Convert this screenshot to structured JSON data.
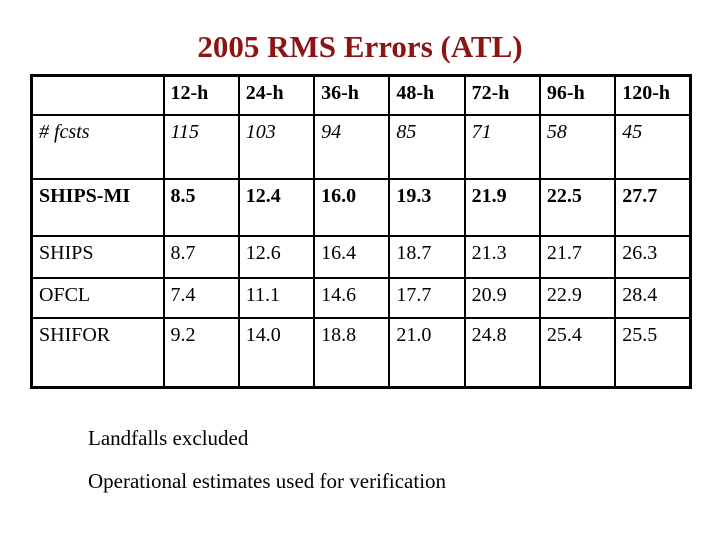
{
  "slide": {
    "title": "2005 RMS Errors (ATL)",
    "title_color": "#8c1414",
    "table": {
      "columns": [
        "",
        "12-h",
        "24-h",
        "36-h",
        "48-h",
        "72-h",
        "96-h",
        "120-h"
      ],
      "rows": [
        {
          "label": "# fcsts",
          "style": "italic",
          "values": [
            "115",
            "103",
            "94",
            "85",
            "71",
            "58",
            "45"
          ]
        },
        {
          "label": "SHIPS-MI",
          "style": "bold",
          "values": [
            "8.5",
            "12.4",
            "16.0",
            "19.3",
            "21.9",
            "22.5",
            "27.7"
          ]
        },
        {
          "label": "SHIPS",
          "style": "regular",
          "values": [
            "8.7",
            "12.6",
            "16.4",
            "18.7",
            "21.3",
            "21.7",
            "26.3"
          ]
        },
        {
          "label": "OFCL",
          "style": "regular",
          "values": [
            "7.4",
            "11.1",
            "14.6",
            "17.7",
            "20.9",
            "22.9",
            "28.4"
          ]
        },
        {
          "label": "SHIFOR",
          "style": "regular",
          "values": [
            "9.2",
            "14.0",
            "18.8",
            "21.0",
            "24.8",
            "25.4",
            "25.5"
          ]
        }
      ]
    },
    "notes": [
      "Landfalls excluded",
      "Operational estimates used for verification"
    ]
  }
}
